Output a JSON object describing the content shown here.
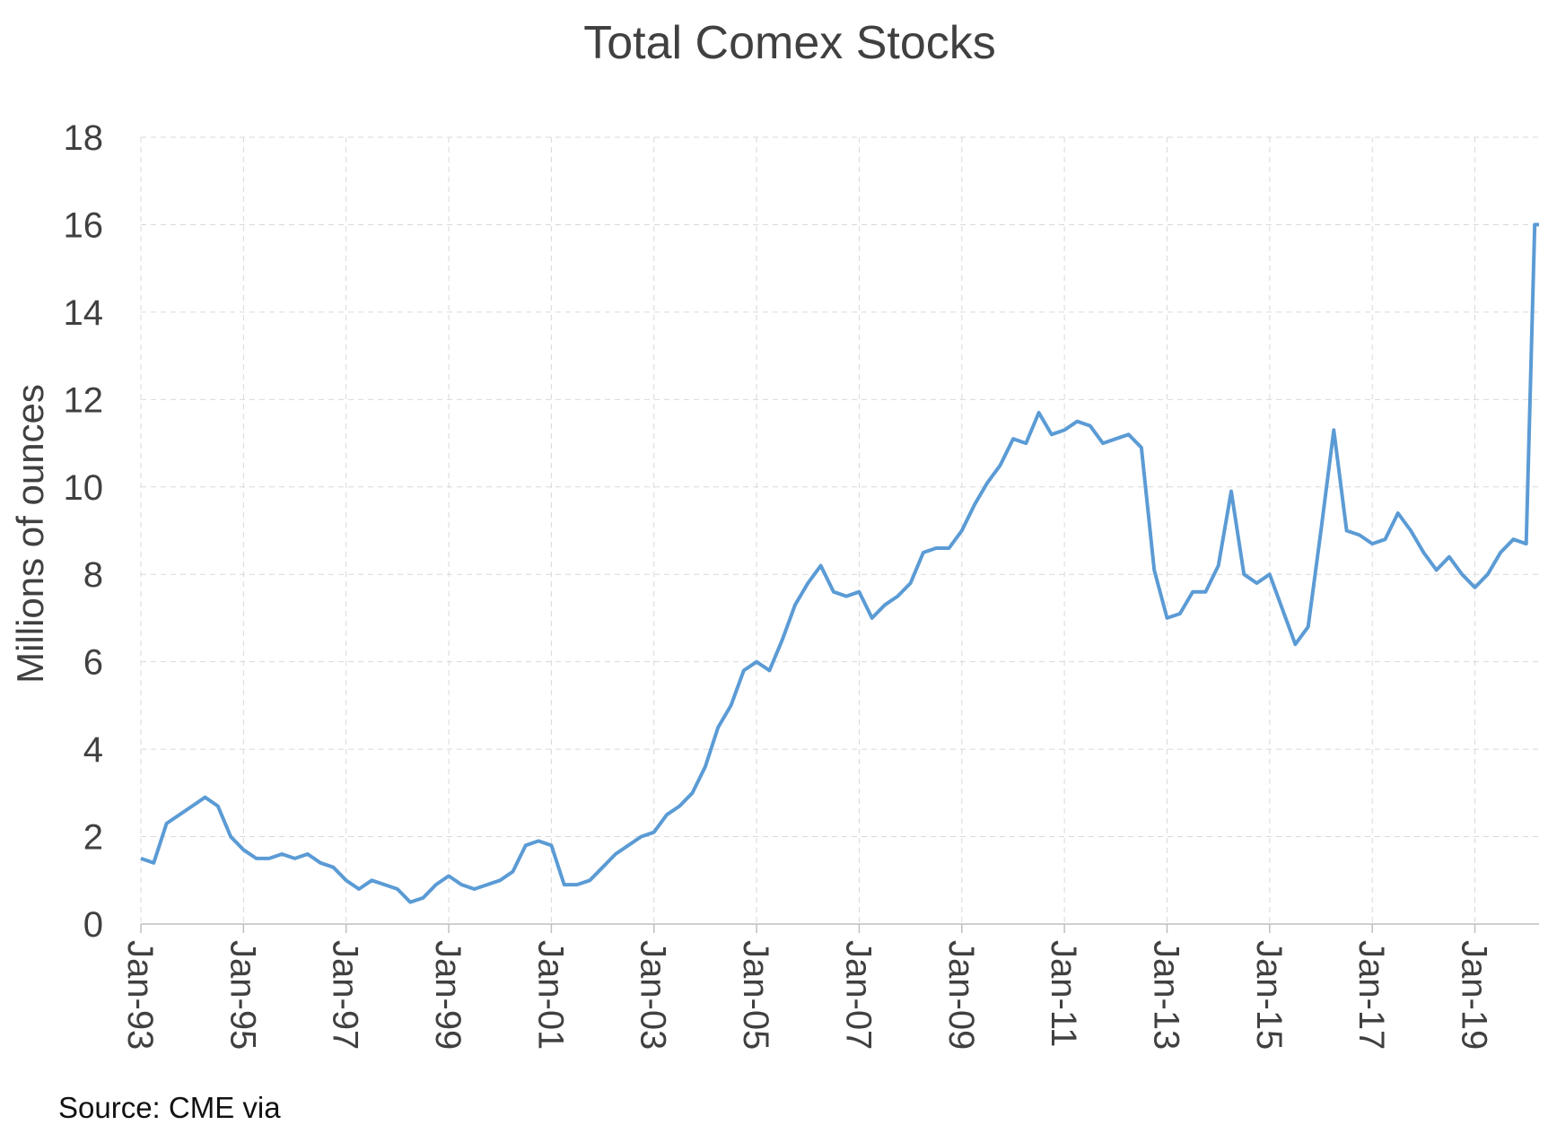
{
  "chart_data": {
    "type": "line",
    "title": "Total Comex Stocks",
    "ylabel": "Millions of ounces",
    "xlabel": "",
    "ylim": [
      0,
      18
    ],
    "yticks": [
      0,
      2,
      4,
      6,
      8,
      10,
      12,
      14,
      16,
      18
    ],
    "xlim": [
      "1993-01",
      "2020-04"
    ],
    "xtick_labels": [
      "Jan-93",
      "Jan-95",
      "Jan-97",
      "Jan-99",
      "Jan-01",
      "Jan-03",
      "Jan-05",
      "Jan-07",
      "Jan-09",
      "Jan-11",
      "Jan-13",
      "Jan-15",
      "Jan-17",
      "Jan-19"
    ],
    "grid": true,
    "line_color": "#5b9bd5",
    "series": [
      {
        "x": [
          "1993-01",
          "1993-04",
          "1993-07",
          "1993-10",
          "1994-01",
          "1994-04",
          "1994-07",
          "1994-10",
          "1995-01",
          "1995-04",
          "1995-07",
          "1995-10",
          "1996-01",
          "1996-04",
          "1996-07",
          "1996-10",
          "1997-01",
          "1997-04",
          "1997-07",
          "1997-10",
          "1998-01",
          "1998-04",
          "1998-07",
          "1998-10",
          "1999-01",
          "1999-04",
          "1999-07",
          "1999-10",
          "2000-01",
          "2000-04",
          "2000-07",
          "2000-10",
          "2001-01",
          "2001-04",
          "2001-07",
          "2001-10",
          "2002-01",
          "2002-04",
          "2002-07",
          "2002-10",
          "2003-01",
          "2003-04",
          "2003-07",
          "2003-10",
          "2004-01",
          "2004-04",
          "2004-07",
          "2004-10",
          "2005-01",
          "2005-04",
          "2005-07",
          "2005-10",
          "2006-01",
          "2006-04",
          "2006-07",
          "2006-10",
          "2007-01",
          "2007-04",
          "2007-07",
          "2007-10",
          "2008-01",
          "2008-04",
          "2008-07",
          "2008-10",
          "2009-01",
          "2009-04",
          "2009-07",
          "2009-10",
          "2010-01",
          "2010-04",
          "2010-07",
          "2010-10",
          "2011-01",
          "2011-04",
          "2011-07",
          "2011-10",
          "2012-01",
          "2012-04",
          "2012-07",
          "2012-10",
          "2013-01",
          "2013-04",
          "2013-07",
          "2013-10",
          "2014-01",
          "2014-04",
          "2014-07",
          "2014-10",
          "2015-01",
          "2015-04",
          "2015-07",
          "2015-10",
          "2016-01",
          "2016-04",
          "2016-07",
          "2016-10",
          "2017-01",
          "2017-04",
          "2017-07",
          "2017-10",
          "2018-01",
          "2018-04",
          "2018-07",
          "2018-10",
          "2019-01",
          "2019-04",
          "2019-07",
          "2019-10",
          "2020-01",
          "2020-03",
          "2020-04"
        ],
        "values": [
          1.5,
          1.4,
          2.3,
          2.5,
          2.7,
          2.9,
          2.7,
          2.0,
          1.7,
          1.5,
          1.5,
          1.6,
          1.5,
          1.6,
          1.4,
          1.3,
          1.0,
          0.8,
          1.0,
          0.9,
          0.8,
          0.5,
          0.6,
          0.9,
          1.1,
          0.9,
          0.8,
          0.9,
          1.0,
          1.2,
          1.8,
          1.9,
          1.8,
          0.9,
          0.9,
          1.0,
          1.3,
          1.6,
          1.8,
          2.0,
          2.1,
          2.5,
          2.7,
          3.0,
          3.6,
          4.5,
          5.0,
          5.8,
          6.0,
          5.8,
          6.5,
          7.3,
          7.8,
          8.2,
          7.6,
          7.5,
          7.6,
          7.0,
          7.3,
          7.5,
          7.8,
          8.5,
          8.6,
          8.6,
          9.0,
          9.6,
          10.1,
          10.5,
          11.1,
          11.0,
          11.7,
          11.2,
          11.3,
          11.5,
          11.4,
          11.0,
          11.1,
          11.2,
          10.9,
          8.1,
          7.0,
          7.1,
          7.6,
          7.6,
          8.2,
          9.9,
          8.0,
          7.8,
          8.0,
          7.2,
          6.4,
          6.8,
          9.0,
          11.3,
          9.0,
          8.9,
          8.7,
          8.8,
          9.4,
          9.0,
          8.5,
          8.1,
          8.4,
          8.0,
          7.7,
          8.0,
          8.5,
          8.8,
          8.7,
          16.0,
          16.0
        ]
      }
    ]
  },
  "source": "Source: CME via"
}
